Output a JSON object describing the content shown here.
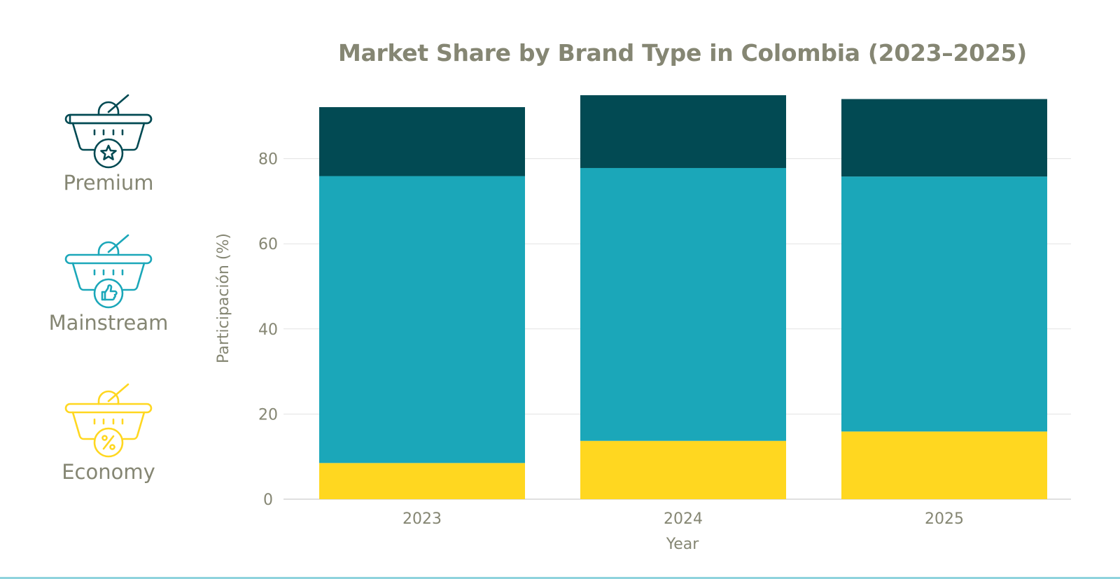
{
  "colors": {
    "premium": "#024a53",
    "mainstream": "#1ba7b9",
    "economy": "#ffd720",
    "text": "#858673",
    "grid": "#e3e3e3"
  },
  "legend": [
    {
      "label": "Premium",
      "icon": "basket-star-icon",
      "color": "#024a53"
    },
    {
      "label": "Mainstream",
      "icon": "basket-thumbs-up-icon",
      "color": "#1ba7b9"
    },
    {
      "label": "Economy",
      "icon": "basket-percent-icon",
      "color": "#ffd720"
    }
  ],
  "chart_data": {
    "type": "bar",
    "stacked": true,
    "title": "Market Share by Brand Type in Colombia (2023–2025)",
    "xlabel": "Year",
    "ylabel": "Participación (%)",
    "categories": [
      "2023",
      "2024",
      "2025"
    ],
    "ylim": [
      0,
      95
    ],
    "yticks": [
      0,
      20,
      40,
      60,
      80
    ],
    "grid": true,
    "series": [
      {
        "name": "Economy",
        "values": [
          8.5,
          13.7,
          15.9
        ]
      },
      {
        "name": "Mainstream",
        "values": [
          67.4,
          64.1,
          59.9
        ]
      },
      {
        "name": "Premium",
        "values": [
          16.2,
          17.1,
          18.2
        ]
      }
    ]
  }
}
